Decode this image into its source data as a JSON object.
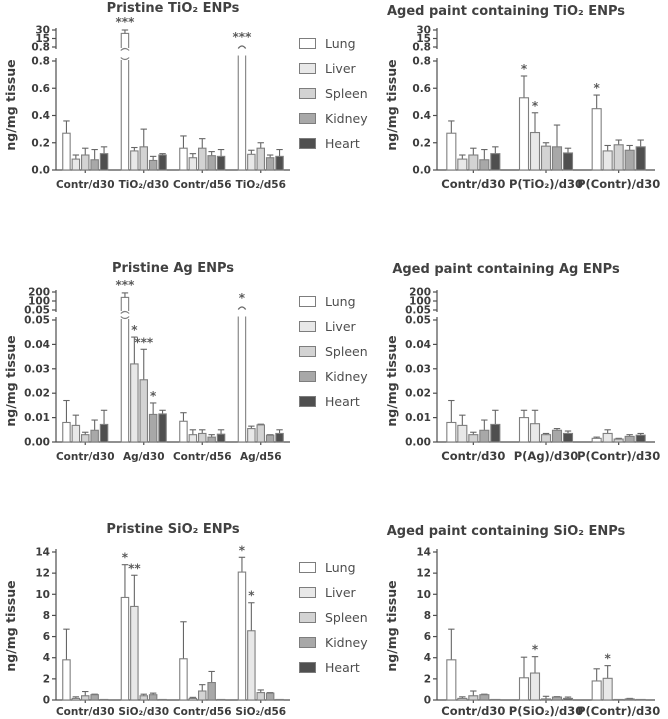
{
  "ylabel": "ng/mg tissue",
  "legend": {
    "entries": [
      {
        "label": "Lung",
        "fill": "#ffffff"
      },
      {
        "label": "Liver",
        "fill": "#e8e8e8"
      },
      {
        "label": "Spleen",
        "fill": "#d3d3d3"
      },
      {
        "label": "Kidney",
        "fill": "#a8a8a8"
      },
      {
        "label": "Heart",
        "fill": "#4f4f4f"
      }
    ]
  },
  "colors": {
    "axis": "#4d4d4d",
    "bar_stroke": "#7f7f7f",
    "error_bar": "#666666",
    "text": "#3d3d3d"
  },
  "chart_data": [
    {
      "type": "bar",
      "title": "Pristine TiO₂ ENPs",
      "ylabel": "ng/mg tissue",
      "series_names": [
        "Lung",
        "Liver",
        "Spleen",
        "Kidney",
        "Heart"
      ],
      "axis": {
        "broken": true,
        "upper_ticks": [
          "30",
          "15",
          "0.8"
        ],
        "lower_ticks": [
          "0.8",
          "0.6",
          "0.4",
          "0.2",
          "0.0"
        ],
        "lower_max": 0.8
      },
      "categories": [
        "Contr/d30",
        "TiO₂/d30",
        "Contr/d56",
        "TiO₂/d56"
      ],
      "groups": [
        {
          "label": "Contr/d30",
          "bars": [
            {
              "v": 0.27,
              "e": 0.36
            },
            {
              "v": 0.08,
              "e": 0.11
            },
            {
              "v": 0.11,
              "e": 0.16
            },
            {
              "v": 0.075,
              "e": 0.15
            },
            {
              "v": 0.12,
              "e": 0.17
            }
          ]
        },
        {
          "label": "TiO₂/d30",
          "bars": [
            {
              "break": "through",
              "v_upper": 24,
              "e_upper": 30,
              "sig": "***"
            },
            {
              "v": 0.14,
              "e": 0.165
            },
            {
              "v": 0.17,
              "e": 0.3
            },
            {
              "v": 0.07,
              "e": 0.1
            },
            {
              "v": 0.11,
              "e": 0.12
            }
          ]
        },
        {
          "label": "Contr/d56",
          "bars": [
            {
              "v": 0.16,
              "e": 0.25
            },
            {
              "v": 0.09,
              "e": 0.12
            },
            {
              "v": 0.16,
              "e": 0.23
            },
            {
              "v": 0.105,
              "e": 0.135
            },
            {
              "v": 0.1,
              "e": 0.15
            }
          ]
        },
        {
          "label": "TiO₂/d56",
          "bars": [
            {
              "break": "capped",
              "sig": "***"
            },
            {
              "v": 0.115,
              "e": 0.145
            },
            {
              "v": 0.16,
              "e": 0.2
            },
            {
              "v": 0.09,
              "e": 0.11
            },
            {
              "v": 0.1,
              "e": 0.15
            }
          ]
        }
      ]
    },
    {
      "type": "bar",
      "title": "Aged paint containing TiO₂ ENPs",
      "ylabel": "ng/mg tissue",
      "series_names": [
        "Lung",
        "Liver",
        "Spleen",
        "Kidney",
        "Heart"
      ],
      "axis": {
        "broken": true,
        "upper_ticks": [
          "30",
          "15",
          "0.8"
        ],
        "lower_ticks": [
          "0.8",
          "0.6",
          "0.4",
          "0.2",
          "0.0"
        ],
        "lower_max": 0.8
      },
      "categories": [
        "Contr/d30",
        "P(TiO₂)/d30",
        "P(Contr)/d30"
      ],
      "groups": [
        {
          "label": "Contr/d30",
          "bars": [
            {
              "v": 0.27,
              "e": 0.36
            },
            {
              "v": 0.08,
              "e": 0.11
            },
            {
              "v": 0.11,
              "e": 0.16
            },
            {
              "v": 0.075,
              "e": 0.15
            },
            {
              "v": 0.12,
              "e": 0.17
            }
          ]
        },
        {
          "label": "P(TiO₂)/d30",
          "bars": [
            {
              "v": 0.53,
              "e": 0.69,
              "sig": "*"
            },
            {
              "v": 0.275,
              "e": 0.42,
              "sig": "*"
            },
            {
              "v": 0.175,
              "e": 0.2
            },
            {
              "v": 0.17,
              "e": 0.33
            },
            {
              "v": 0.125,
              "e": 0.16
            }
          ]
        },
        {
          "label": "P(Contr)/d30",
          "bars": [
            {
              "v": 0.45,
              "e": 0.55,
              "sig": "*"
            },
            {
              "v": 0.14,
              "e": 0.18
            },
            {
              "v": 0.185,
              "e": 0.22
            },
            {
              "v": 0.145,
              "e": 0.18
            },
            {
              "v": 0.17,
              "e": 0.22
            }
          ]
        }
      ]
    },
    {
      "type": "bar",
      "title": "Pristine Ag ENPs",
      "ylabel": "ng/mg tissue",
      "series_names": [
        "Lung",
        "Liver",
        "Spleen",
        "Kidney",
        "Heart"
      ],
      "axis": {
        "broken": true,
        "upper_ticks": [
          "200",
          "100",
          "0.05"
        ],
        "lower_ticks": [
          "0.05",
          "0.04",
          "0.03",
          "0.02",
          "0.01",
          "0.00"
        ],
        "lower_max": 0.05
      },
      "categories": [
        "Contr/d30",
        "Ag/d30",
        "Contr/d56",
        "Ag/d56"
      ],
      "groups": [
        {
          "label": "Contr/d30",
          "bars": [
            {
              "v": 0.008,
              "e": 0.017
            },
            {
              "v": 0.0068,
              "e": 0.011
            },
            {
              "v": 0.003,
              "e": 0.004
            },
            {
              "v": 0.0048,
              "e": 0.009
            },
            {
              "v": 0.0072,
              "e": 0.013
            }
          ]
        },
        {
          "label": "Ag/d30",
          "bars": [
            {
              "break": "through",
              "v_upper": 140,
              "e_upper": 190,
              "sig": "***"
            },
            {
              "v": 0.032,
              "e": 0.043,
              "sig": "*"
            },
            {
              "v": 0.0255,
              "e": 0.038,
              "sig": "***"
            },
            {
              "v": 0.0113,
              "e": 0.016,
              "sig": "*"
            },
            {
              "v": 0.0115,
              "e": 0.013
            }
          ]
        },
        {
          "label": "Contr/d56",
          "bars": [
            {
              "v": 0.0085,
              "e": 0.012
            },
            {
              "v": 0.003,
              "e": 0.005
            },
            {
              "v": 0.0035,
              "e": 0.005
            },
            {
              "v": 0.002,
              "e": 0.003
            },
            {
              "v": 0.0032,
              "e": 0.005
            }
          ]
        },
        {
          "label": "Ag/d56",
          "bars": [
            {
              "break": "capped",
              "sig": "*"
            },
            {
              "v": 0.0055,
              "e": 0.0065
            },
            {
              "v": 0.007,
              "e": 0.0073
            },
            {
              "v": 0.0028,
              "e": 0.003
            },
            {
              "v": 0.0035,
              "e": 0.005
            }
          ]
        }
      ]
    },
    {
      "type": "bar",
      "title": "Aged paint containing Ag ENPs",
      "ylabel": "ng/mg tissue",
      "series_names": [
        "Lung",
        "Liver",
        "Spleen",
        "Kidney",
        "Heart"
      ],
      "axis": {
        "broken": true,
        "upper_ticks": [
          "200",
          "100",
          "0.05"
        ],
        "lower_ticks": [
          "0.05",
          "0.04",
          "0.03",
          "0.02",
          "0.01",
          "0.00"
        ],
        "lower_max": 0.05
      },
      "categories": [
        "Contr/d30",
        "P(Ag)/d30",
        "P(Contr)/d30"
      ],
      "groups": [
        {
          "label": "Contr/d30",
          "bars": [
            {
              "v": 0.008,
              "e": 0.017
            },
            {
              "v": 0.0068,
              "e": 0.011
            },
            {
              "v": 0.003,
              "e": 0.004
            },
            {
              "v": 0.0048,
              "e": 0.009
            },
            {
              "v": 0.0072,
              "e": 0.013
            }
          ]
        },
        {
          "label": "P(Ag)/d30",
          "bars": [
            {
              "v": 0.01,
              "e": 0.013
            },
            {
              "v": 0.0075,
              "e": 0.013
            },
            {
              "v": 0.003,
              "e": 0.0035
            },
            {
              "v": 0.0048,
              "e": 0.0055
            },
            {
              "v": 0.0035,
              "e": 0.0045
            }
          ]
        },
        {
          "label": "P(Contr)/d30",
          "bars": [
            {
              "v": 0.0015,
              "e": 0.002
            },
            {
              "v": 0.0035,
              "e": 0.005
            },
            {
              "v": 0.0012,
              "e": 0.0015
            },
            {
              "v": 0.0023,
              "e": 0.003
            },
            {
              "v": 0.0028,
              "e": 0.0035
            }
          ]
        }
      ]
    },
    {
      "type": "bar",
      "title": "Pristine SiO₂ ENPs",
      "ylabel": "ng/mg tissue",
      "series_names": [
        "Lung",
        "Liver",
        "Spleen",
        "Kidney",
        "Heart"
      ],
      "axis": {
        "broken": false,
        "lower_ticks": [
          "14",
          "12",
          "10",
          "8",
          "6",
          "4",
          "2",
          "0"
        ],
        "lower_max": 14
      },
      "categories": [
        "Contr/d30",
        "SiO₂/d30",
        "Contr/d56",
        "SiO₂/d56"
      ],
      "groups": [
        {
          "label": "Contr/d30",
          "bars": [
            {
              "v": 3.8,
              "e": 6.7
            },
            {
              "v": 0.15,
              "e": 0.3
            },
            {
              "v": 0.4,
              "e": 0.8
            },
            {
              "v": 0.5,
              "e": 0.55
            },
            {
              "v": 0.05,
              "e": 0.05
            }
          ]
        },
        {
          "label": "SiO₂/d30",
          "bars": [
            {
              "v": 9.7,
              "e": 12.8,
              "sig": "*"
            },
            {
              "v": 8.85,
              "e": 11.8,
              "sig": "**"
            },
            {
              "v": 0.4,
              "e": 0.55
            },
            {
              "v": 0.5,
              "e": 0.65
            },
            {
              "v": 0.05,
              "e": 0.05
            }
          ]
        },
        {
          "label": "Contr/d56",
          "bars": [
            {
              "v": 3.9,
              "e": 7.4
            },
            {
              "v": 0.15,
              "e": 0.25
            },
            {
              "v": 0.85,
              "e": 1.45
            },
            {
              "v": 1.65,
              "e": 2.7
            },
            {
              "v": 0.05,
              "e": 0.05
            }
          ]
        },
        {
          "label": "SiO₂/d56",
          "bars": [
            {
              "v": 12.1,
              "e": 13.5,
              "sig": "*"
            },
            {
              "v": 6.55,
              "e": 9.2,
              "sig": "*"
            },
            {
              "v": 0.7,
              "e": 0.95
            },
            {
              "v": 0.65,
              "e": 0.7
            },
            {
              "v": 0.05,
              "e": 0.05
            }
          ]
        }
      ]
    },
    {
      "type": "bar",
      "title": "Aged paint containing SiO₂ ENPs",
      "ylabel": "ng/mg tissue",
      "series_names": [
        "Lung",
        "Liver",
        "Spleen",
        "Kidney",
        "Heart"
      ],
      "axis": {
        "broken": false,
        "lower_ticks": [
          "14",
          "12",
          "10",
          "8",
          "6",
          "4",
          "2",
          "0"
        ],
        "lower_max": 14
      },
      "categories": [
        "Contr/d30",
        "P(SiO₂)/d30",
        "P(Contr)/d30"
      ],
      "groups": [
        {
          "label": "Contr/d30",
          "bars": [
            {
              "v": 3.8,
              "e": 6.7
            },
            {
              "v": 0.15,
              "e": 0.3
            },
            {
              "v": 0.4,
              "e": 0.85
            },
            {
              "v": 0.5,
              "e": 0.55
            },
            {
              "v": 0.05,
              "e": 0.05
            }
          ]
        },
        {
          "label": "P(SiO₂)/d30",
          "bars": [
            {
              "v": 2.1,
              "e": 4.05
            },
            {
              "v": 2.55,
              "e": 4.1,
              "sig": "*"
            },
            {
              "v": 0.1,
              "e": 0.35
            },
            {
              "v": 0.28,
              "e": 0.32
            },
            {
              "v": 0.15,
              "e": 0.28
            }
          ]
        },
        {
          "label": "P(Contr)/d30",
          "bars": [
            {
              "v": 1.8,
              "e": 2.95
            },
            {
              "v": 2.05,
              "e": 3.25,
              "sig": "*"
            },
            {
              "v": 0.05,
              "e": 0.05
            },
            {
              "v": 0.1,
              "e": 0.15
            },
            {
              "v": 0.05,
              "e": 0.05
            }
          ]
        }
      ]
    }
  ]
}
